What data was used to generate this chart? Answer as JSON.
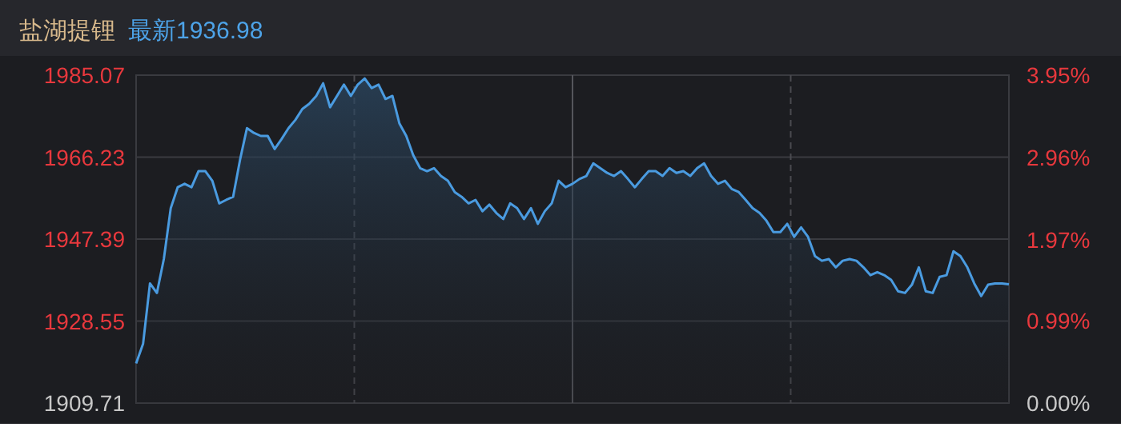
{
  "chart_data": {
    "type": "area",
    "title": "盐湖提锂",
    "subtitle": "最新1936.98",
    "categories": [
      null,
      null,
      null,
      null,
      null,
      null,
      null,
      null,
      null,
      null,
      null,
      null,
      null,
      null,
      null,
      null,
      null,
      null,
      null,
      null,
      null,
      null,
      null,
      null,
      null,
      null,
      null,
      null,
      null,
      null,
      null,
      null,
      null,
      null,
      null,
      null,
      null,
      null,
      null,
      null,
      null,
      null,
      null,
      null,
      null,
      null,
      null,
      null,
      null,
      null,
      null,
      null,
      null,
      null,
      null,
      null,
      null,
      null,
      null,
      null,
      null,
      null,
      null,
      null,
      null,
      null,
      null,
      null,
      null,
      null,
      null,
      null,
      null,
      null,
      null,
      null,
      null,
      null,
      null,
      null,
      null,
      null,
      null,
      null,
      null,
      null,
      null,
      null,
      null,
      null,
      null,
      null,
      null,
      null,
      null,
      null,
      null,
      null,
      null,
      null,
      null,
      null,
      null,
      null,
      null,
      null,
      null,
      null,
      null,
      null,
      null,
      null,
      null,
      null,
      null,
      null,
      null,
      null,
      null,
      null,
      null,
      null,
      null,
      null,
      null,
      null,
      null
    ],
    "series": [
      {
        "color": "#4a9be0",
        "values": [
          1918.8,
          1923.3,
          1937.2,
          1935.0,
          1942.8,
          1954.5,
          1959.3,
          1960.1,
          1959.3,
          1963.0,
          1963.0,
          1960.8,
          1955.6,
          1956.4,
          1957.1,
          1965.6,
          1972.9,
          1971.8,
          1971.1,
          1971.1,
          1968.1,
          1970.4,
          1972.9,
          1974.8,
          1977.3,
          1978.5,
          1980.3,
          1983.2,
          1977.7,
          1980.3,
          1982.9,
          1980.3,
          1982.9,
          1984.3,
          1982.1,
          1982.9,
          1979.6,
          1980.3,
          1974.0,
          1971.1,
          1966.7,
          1963.7,
          1963.0,
          1963.7,
          1961.9,
          1960.8,
          1958.2,
          1957.1,
          1955.6,
          1956.4,
          1953.8,
          1955.3,
          1953.4,
          1952.0,
          1955.6,
          1954.5,
          1952.0,
          1954.5,
          1950.9,
          1953.8,
          1955.6,
          1960.8,
          1959.3,
          1960.1,
          1961.2,
          1961.9,
          1964.8,
          1963.7,
          1962.6,
          1961.9,
          1963.0,
          1961.2,
          1959.3,
          1961.2,
          1963.0,
          1963.0,
          1961.9,
          1963.7,
          1962.6,
          1963.0,
          1961.9,
          1963.7,
          1964.8,
          1961.9,
          1960.1,
          1960.8,
          1958.9,
          1958.2,
          1956.4,
          1954.5,
          1953.4,
          1951.6,
          1949.0,
          1949.0,
          1950.9,
          1947.9,
          1950.1,
          1947.9,
          1943.5,
          1942.4,
          1942.8,
          1940.9,
          1942.4,
          1942.8,
          1942.4,
          1940.9,
          1939.1,
          1939.8,
          1939.1,
          1938.0,
          1935.4,
          1935.0,
          1936.9,
          1940.9,
          1935.4,
          1935.0,
          1938.7,
          1939.1,
          1944.6,
          1943.5,
          1940.9,
          1937.2,
          1934.3,
          1936.9,
          1937.2,
          1937.2,
          1937.0
        ]
      }
    ],
    "ylim": [
      1909.71,
      1985.07
    ],
    "yticks": [
      1909.71,
      1928.55,
      1947.39,
      1966.23,
      1985.07
    ],
    "y2lim": [
      0,
      3.95
    ],
    "y2ticks": [
      {
        "value": 0,
        "label": "0.00%"
      },
      {
        "value": 0.99,
        "label": "0.99%"
      },
      {
        "value": 1.97,
        "label": "1.97%"
      },
      {
        "value": 2.96,
        "label": "2.96%"
      },
      {
        "value": 3.95,
        "label": "3.95%"
      }
    ],
    "grid": true,
    "line_style": "solid"
  }
}
